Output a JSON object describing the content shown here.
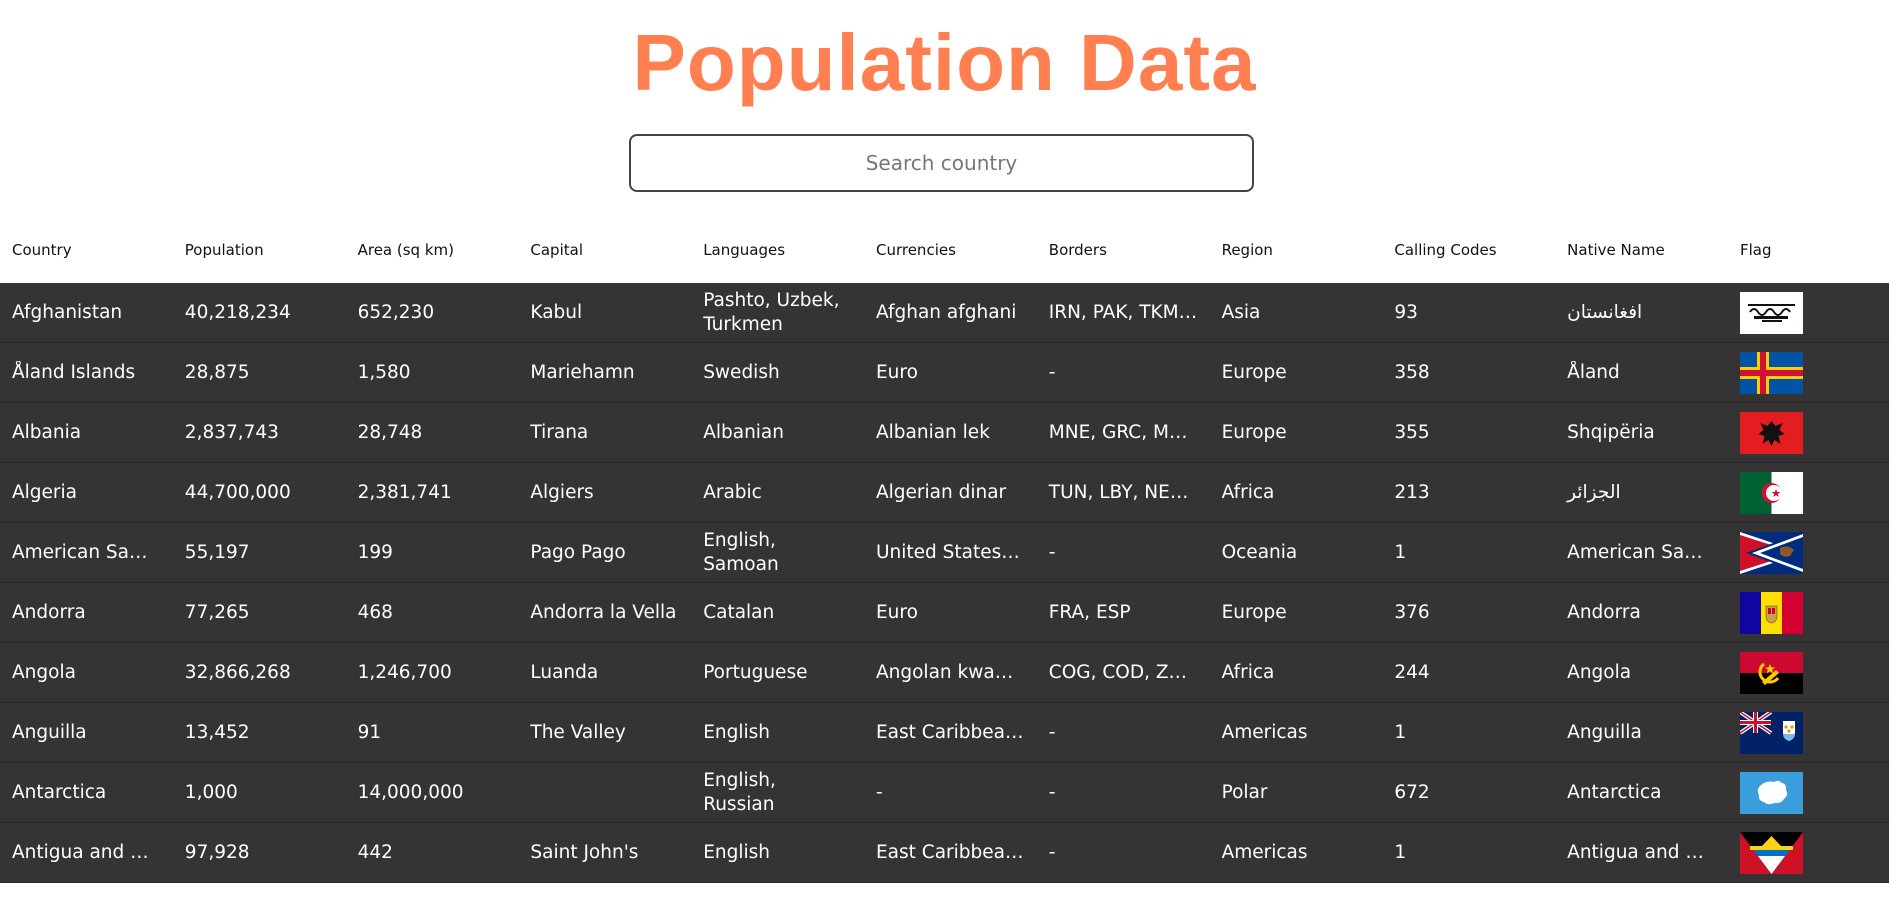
{
  "page": {
    "title": "Population Data"
  },
  "search": {
    "placeholder": "Search country",
    "value": ""
  },
  "table": {
    "headers": [
      "Country",
      "Population",
      "Area (sq km)",
      "Capital",
      "Languages",
      "Currencies",
      "Borders",
      "Region",
      "Calling Codes",
      "Native Name",
      "Flag"
    ],
    "rows": [
      {
        "country": "Afghanistan",
        "population": "40,218,234",
        "area": "652,230",
        "capital": "Kabul",
        "languages": "Pashto, Uzbek, Turkmen",
        "currencies": "Afghan afghani",
        "borders": "IRN, PAK, TKM, UZB, TJK, CHN",
        "region": "Asia",
        "calling_code": "93",
        "native_name": "افغانستان",
        "flag": "afghanistan-flag"
      },
      {
        "country": "Åland Islands",
        "population": "28,875",
        "area": "1,580",
        "capital": "Mariehamn",
        "languages": "Swedish",
        "currencies": "Euro",
        "borders": "-",
        "region": "Europe",
        "calling_code": "358",
        "native_name": "Åland",
        "flag": "aland-flag"
      },
      {
        "country": "Albania",
        "population": "2,837,743",
        "area": "28,748",
        "capital": "Tirana",
        "languages": "Albanian",
        "currencies": "Albanian lek",
        "borders": "MNE, GRC, MKD, UNK",
        "region": "Europe",
        "calling_code": "355",
        "native_name": "Shqipëria",
        "flag": "albania-flag"
      },
      {
        "country": "Algeria",
        "population": "44,700,000",
        "area": "2,381,741",
        "capital": "Algiers",
        "languages": "Arabic",
        "currencies": "Algerian dinar",
        "borders": "TUN, LBY, NER, ESH, MRT, MLI, MAR",
        "region": "Africa",
        "calling_code": "213",
        "native_name": "الجزائر",
        "flag": "algeria-flag"
      },
      {
        "country": "American Samoa",
        "population": "55,197",
        "area": "199",
        "capital": "Pago Pago",
        "languages": "English, Samoan",
        "currencies": "United States dollar",
        "borders": "-",
        "region": "Oceania",
        "calling_code": "1",
        "native_name": "American Samoa",
        "flag": "american-samoa-flag"
      },
      {
        "country": "Andorra",
        "population": "77,265",
        "area": "468",
        "capital": "Andorra la Vella",
        "languages": "Catalan",
        "currencies": "Euro",
        "borders": "FRA, ESP",
        "region": "Europe",
        "calling_code": "376",
        "native_name": "Andorra",
        "flag": "andorra-flag"
      },
      {
        "country": "Angola",
        "population": "32,866,268",
        "area": "1,246,700",
        "capital": "Luanda",
        "languages": "Portuguese",
        "currencies": "Angolan kwanza",
        "borders": "COG, COD, ZMB, NAM",
        "region": "Africa",
        "calling_code": "244",
        "native_name": "Angola",
        "flag": "angola-flag"
      },
      {
        "country": "Anguilla",
        "population": "13,452",
        "area": "91",
        "capital": "The Valley",
        "languages": "English",
        "currencies": "East Caribbean dollar",
        "borders": "-",
        "region": "Americas",
        "calling_code": "1",
        "native_name": "Anguilla",
        "flag": "anguilla-flag"
      },
      {
        "country": "Antarctica",
        "population": "1,000",
        "area": "14,000,000",
        "capital": "",
        "languages": "English, Russian",
        "currencies": "-",
        "borders": "-",
        "region": "Polar",
        "calling_code": "672",
        "native_name": "Antarctica",
        "flag": "antarctica-flag"
      },
      {
        "country": "Antigua and Barbuda",
        "population": "97,928",
        "area": "442",
        "capital": "Saint John's",
        "languages": "English",
        "currencies": "East Caribbean dollar",
        "borders": "-",
        "region": "Americas",
        "calling_code": "1",
        "native_name": "Antigua and Barbuda",
        "flag": "antigua-and-barbuda-flag"
      }
    ]
  },
  "colors": {
    "title": "#ff7f50",
    "table_body": "#353334",
    "row_text": "#ffffff"
  }
}
